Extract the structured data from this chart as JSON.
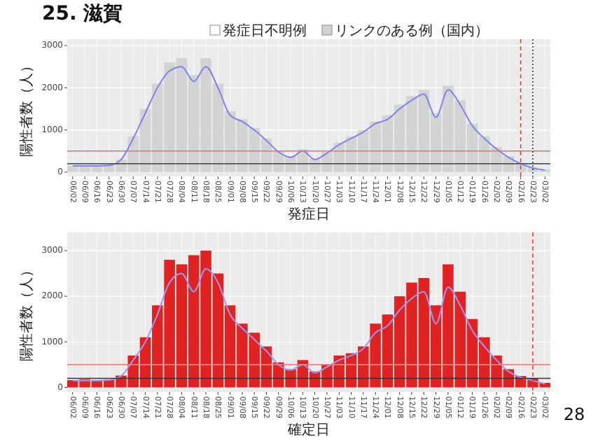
{
  "chart_data": [
    {
      "type": "bar",
      "title": "25. 滋賀",
      "xlabel": "発症日",
      "ylabel": "陽性者数（人）",
      "grid": true,
      "legend": "top",
      "categories": [
        "06/02",
        "06/09",
        "06/16",
        "06/23",
        "06/30",
        "07/07",
        "07/14",
        "07/21",
        "07/28",
        "08/04",
        "08/11",
        "08/18",
        "08/25",
        "09/01",
        "09/08",
        "09/15",
        "09/22",
        "09/29",
        "10/06",
        "10/13",
        "10/20",
        "10/27",
        "11/03",
        "11/10",
        "11/17",
        "11/24",
        "12/01",
        "12/08",
        "12/15",
        "12/22",
        "12/29",
        "01/05",
        "01/12",
        "01/19",
        "01/26",
        "02/02",
        "02/09",
        "02/16",
        "02/23",
        "03/02"
      ],
      "series": [
        {
          "name": "リンクのある例（国内）",
          "color": "#d3d3d3",
          "values": [
            150,
            160,
            140,
            170,
            300,
            850,
            1500,
            2100,
            2600,
            2700,
            2300,
            2700,
            2100,
            1450,
            1250,
            1050,
            800,
            500,
            380,
            550,
            320,
            480,
            700,
            850,
            1000,
            1200,
            1350,
            1600,
            1800,
            1950,
            1400,
            2050,
            1700,
            1150,
            850,
            600,
            380,
            220,
            120,
            60
          ]
        },
        {
          "name": "発症日不明例",
          "color": "#ffffff",
          "values": [
            null,
            null,
            null,
            null,
            null,
            null,
            null,
            null,
            null,
            null,
            null,
            null,
            null,
            null,
            null,
            null,
            null,
            null,
            null,
            null,
            null,
            null,
            null,
            null,
            null,
            null,
            null,
            null,
            null,
            null,
            null,
            null,
            null,
            null,
            null,
            null,
            null,
            null,
            null,
            null
          ]
        },
        {
          "type": "line",
          "color": "#8080ee",
          "values": [
            150,
            150,
            150,
            160,
            300,
            800,
            1400,
            2000,
            2400,
            2500,
            2150,
            2500,
            2000,
            1350,
            1200,
            1000,
            750,
            480,
            350,
            500,
            300,
            450,
            650,
            800,
            950,
            1150,
            1250,
            1500,
            1700,
            1850,
            1300,
            1950,
            1600,
            1100,
            800,
            550,
            350,
            200,
            100,
            50
          ]
        }
      ],
      "ylim": [
        -100,
        3150
      ],
      "yticks": [
        0,
        1000,
        2000,
        3000
      ],
      "ref_lines": [
        {
          "axis": "y",
          "value": 500,
          "color": "#e07070"
        },
        {
          "axis": "y",
          "value": 200,
          "color": "#555555"
        },
        {
          "axis": "x",
          "value": "02/16",
          "color": "#e04040",
          "line_style": "dashed"
        },
        {
          "axis": "x",
          "value": "02/23",
          "color": "#333333",
          "line_style": "dotted"
        }
      ]
    },
    {
      "type": "bar",
      "grid": true,
      "xlabel": "確定日",
      "ylabel": "陽性者数（人）",
      "annotations": [
        "28"
      ],
      "categories": [
        "06/02",
        "06/09",
        "06/16",
        "06/23",
        "06/30",
        "07/07",
        "07/14",
        "07/21",
        "07/28",
        "08/04",
        "08/11",
        "08/18",
        "08/25",
        "09/01",
        "09/08",
        "09/15",
        "09/22",
        "09/29",
        "10/06",
        "10/13",
        "10/20",
        "10/27",
        "11/03",
        "11/10",
        "11/17",
        "11/24",
        "12/01",
        "12/08",
        "12/15",
        "12/22",
        "12/29",
        "01/05",
        "01/12",
        "01/19",
        "01/26",
        "02/02",
        "02/09",
        "02/16",
        "02/23",
        "03/02"
      ],
      "series": [
        {
          "color": "#e02222",
          "values": [
            160,
            180,
            150,
            170,
            260,
            700,
            1100,
            1800,
            2800,
            2700,
            2900,
            3000,
            2500,
            1800,
            1400,
            1200,
            900,
            550,
            400,
            600,
            350,
            500,
            700,
            750,
            900,
            1400,
            1600,
            2000,
            2300,
            2400,
            1800,
            2700,
            2100,
            1500,
            1100,
            700,
            400,
            250,
            200,
            100
          ]
        },
        {
          "type": "line",
          "color": "#9999f0",
          "values": [
            150,
            150,
            150,
            160,
            250,
            600,
            1000,
            1600,
            2300,
            2500,
            2100,
            2600,
            2300,
            1600,
            1300,
            1050,
            800,
            500,
            380,
            500,
            320,
            450,
            600,
            700,
            850,
            1200,
            1350,
            1700,
            1950,
            2100,
            1400,
            2200,
            1800,
            1250,
            900,
            600,
            350,
            220,
            150,
            80
          ]
        }
      ],
      "ylim": [
        -100,
        3400
      ],
      "yticks": [
        0,
        1000,
        2000,
        3000
      ],
      "ref_lines": [
        {
          "axis": "y",
          "value": 500,
          "color": "#f08080"
        },
        {
          "axis": "y",
          "value": 200,
          "color": "#333333"
        },
        {
          "axis": "x",
          "value": "02/23",
          "color": "#e04040",
          "line_style": "dashed"
        }
      ]
    }
  ]
}
